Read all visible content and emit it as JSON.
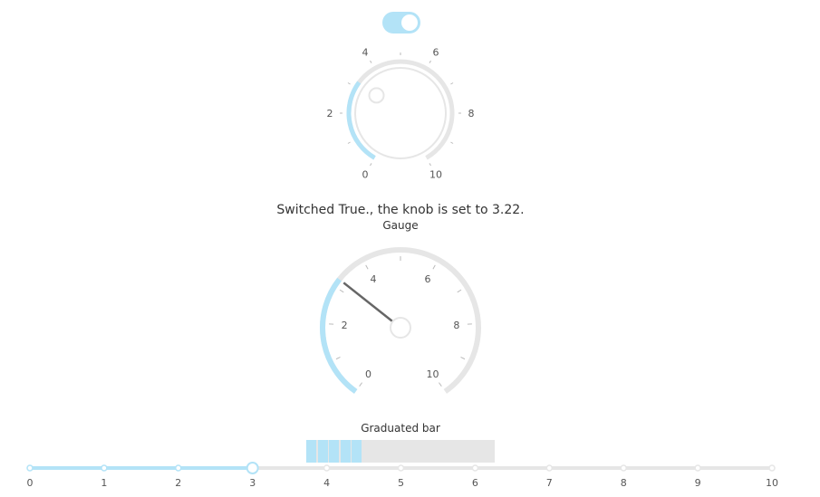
{
  "toggle": {
    "on": true
  },
  "knob": {
    "value": 3.22,
    "min": 0,
    "max": 10,
    "tick_labels": [
      "0",
      "2",
      "4",
      "6",
      "8",
      "10"
    ]
  },
  "status_text": "Switched True., the knob is set to 3.22.",
  "gauge": {
    "label": "Gauge",
    "value": 3.22,
    "min": 0,
    "max": 10,
    "tick_labels": [
      "0",
      "2",
      "4",
      "6",
      "8",
      "10"
    ]
  },
  "graduated_bar": {
    "label": "Graduated bar",
    "value": 3.22,
    "min": 0,
    "max": 10,
    "steps": 10
  },
  "slider": {
    "value": 3,
    "min": 0,
    "max": 10,
    "marks": [
      "0",
      "1",
      "2",
      "3",
      "4",
      "5",
      "6",
      "7",
      "8",
      "9",
      "10"
    ]
  },
  "colors": {
    "accent": "#b3e3f7",
    "track": "#e6e6e6",
    "needle": "#666666"
  }
}
